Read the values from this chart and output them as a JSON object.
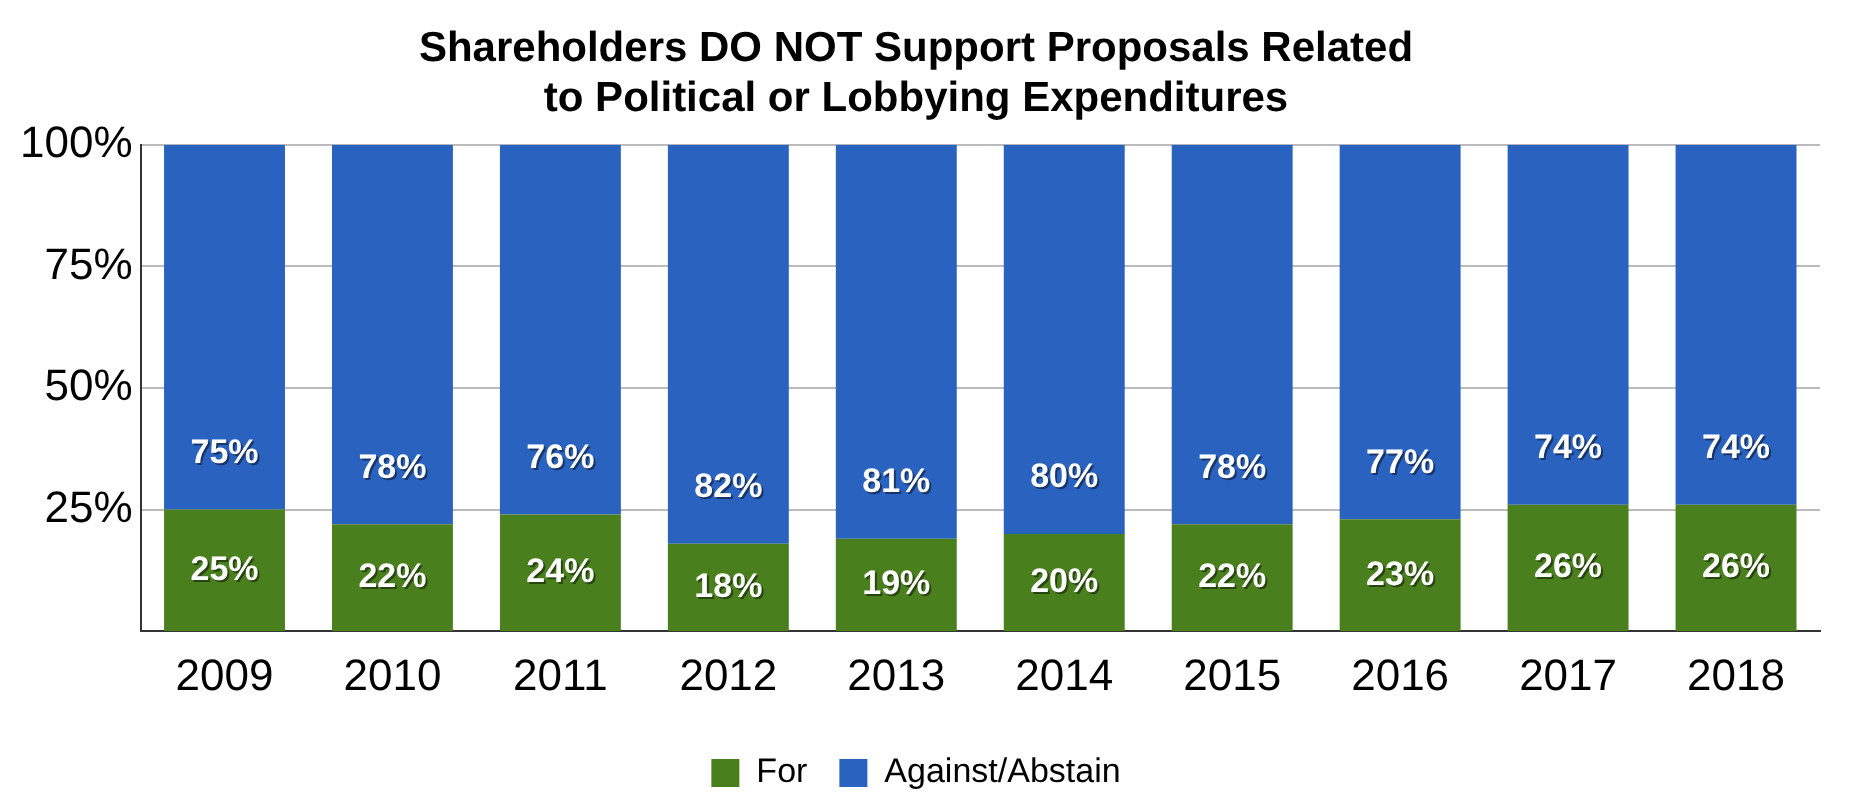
{
  "chart_data": {
    "type": "bar",
    "stacked": true,
    "title": "Shareholders DO NOT Support Proposals Related to Political or Lobbying Expenditures",
    "categories": [
      "2009",
      "2010",
      "2011",
      "2012",
      "2013",
      "2014",
      "2015",
      "2016",
      "2017",
      "2018"
    ],
    "series": [
      {
        "name": "For",
        "color": "#4a7f1e",
        "values": [
          25,
          22,
          24,
          18,
          19,
          20,
          22,
          23,
          26,
          26
        ],
        "value_labels": [
          "25%",
          "22%",
          "24%",
          "18%",
          "19%",
          "20%",
          "22%",
          "23%",
          "26%",
          "26%"
        ]
      },
      {
        "name": "Against/Abstain",
        "color": "#2a62c0",
        "values": [
          75,
          78,
          76,
          82,
          81,
          80,
          78,
          77,
          74,
          74
        ],
        "value_labels": [
          "75%",
          "78%",
          "76%",
          "82%",
          "81%",
          "80%",
          "78%",
          "77%",
          "74%",
          "74%"
        ]
      }
    ],
    "ylim": [
      0,
      100
    ],
    "yticks": [
      {
        "value": 25,
        "label": "25%"
      },
      {
        "value": 50,
        "label": "50%"
      },
      {
        "value": 75,
        "label": "75%"
      },
      {
        "value": 100,
        "label": "100%"
      }
    ],
    "grid": "y",
    "legend": "bottom"
  }
}
